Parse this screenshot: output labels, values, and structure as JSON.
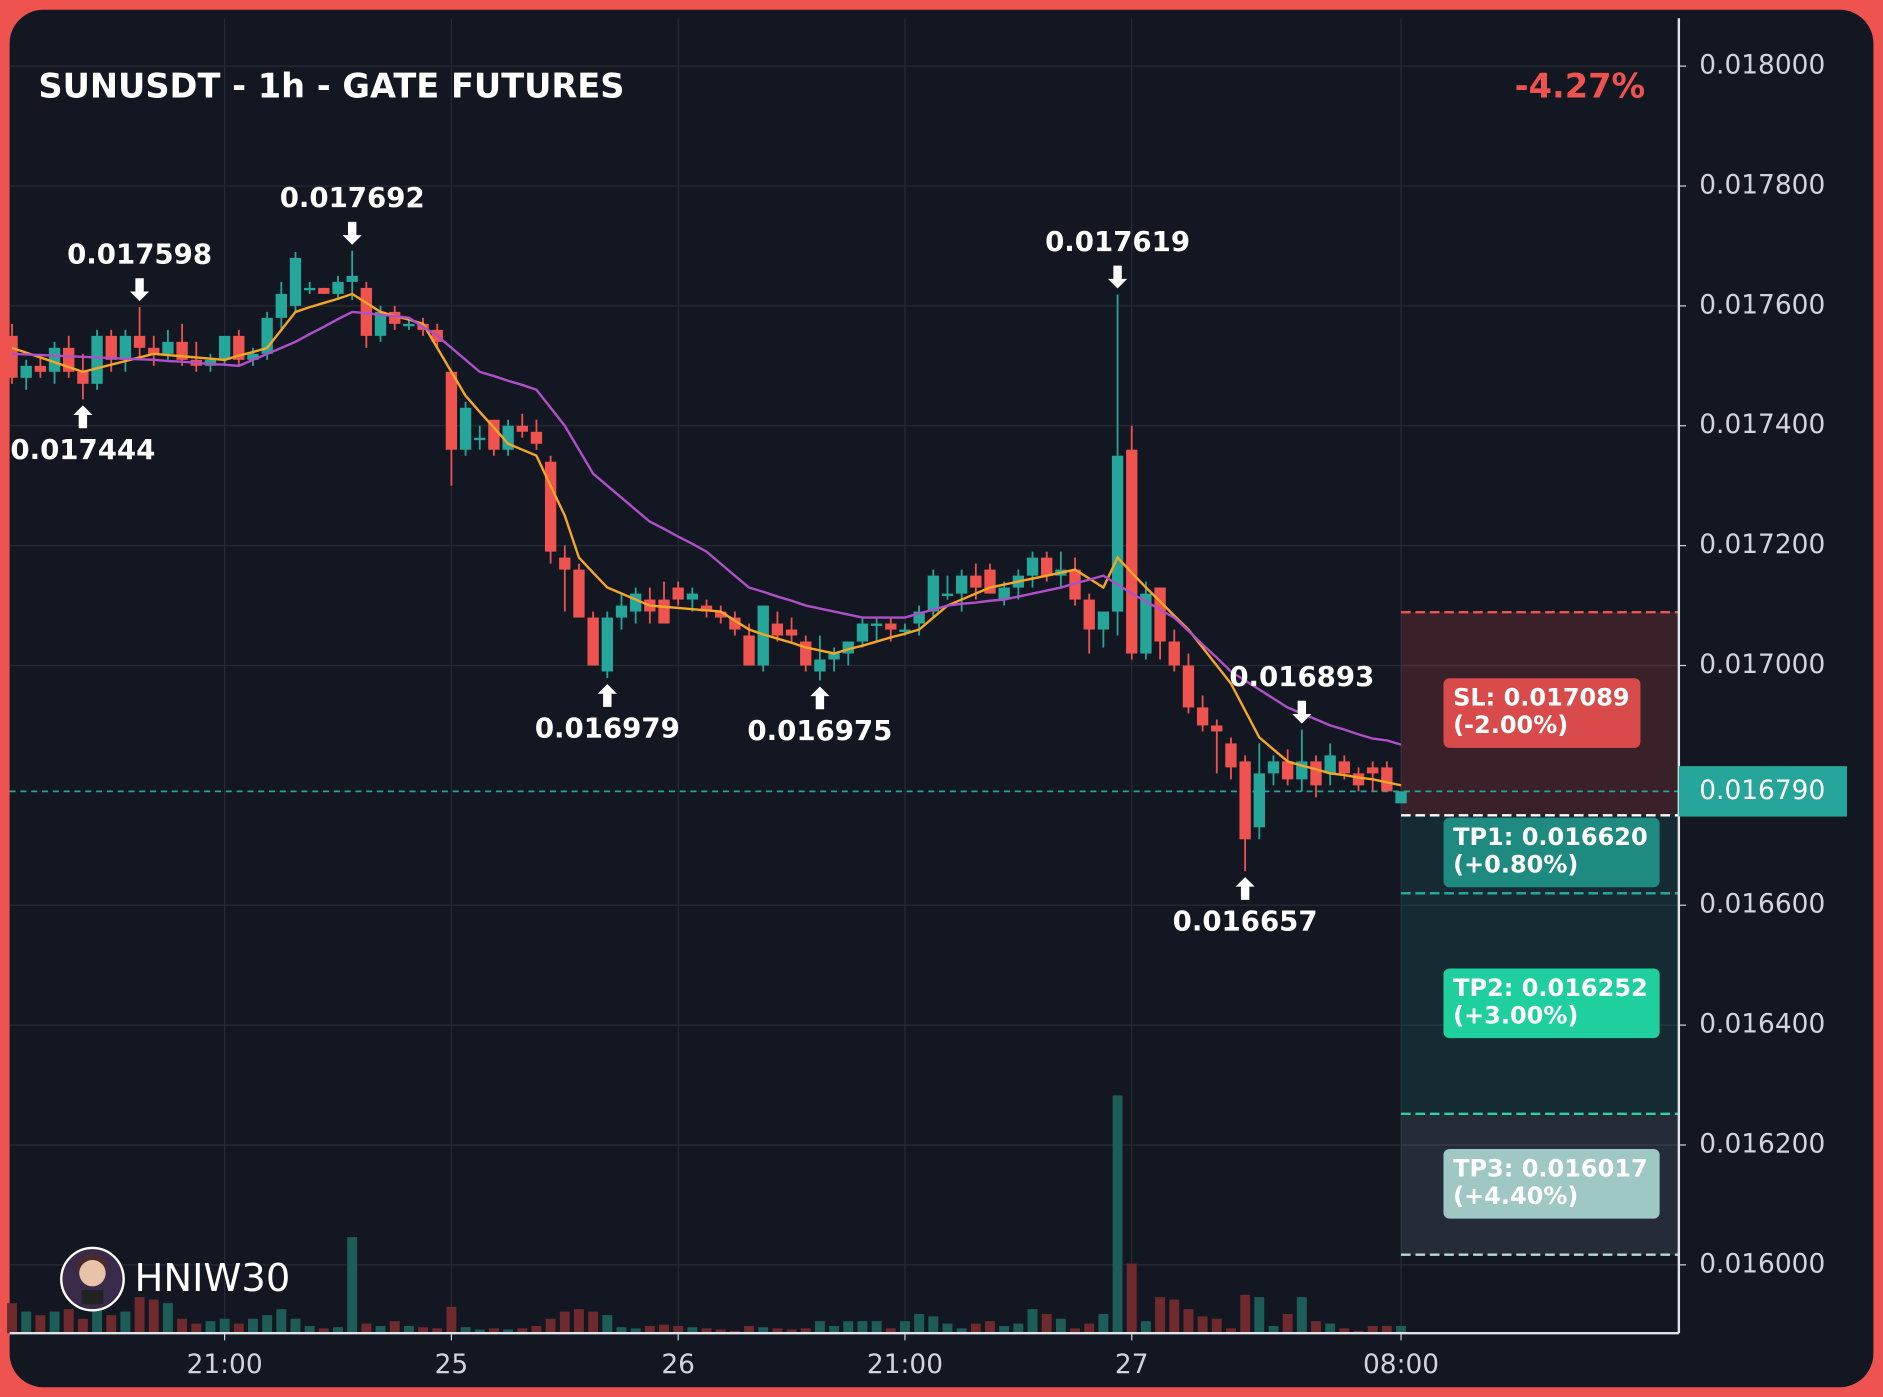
{
  "chart_data": {
    "type": "candlestick",
    "title": "SUNUSDT - 1h - GATE FUTURES",
    "change": "-4.27%",
    "watermark": "HNIW30",
    "up_color": "#26a69a",
    "down_color": "#ef5350",
    "xlim": [
      -0.17,
      117.6
    ],
    "xticks": [
      {
        "value": 15,
        "label": "21:00"
      },
      {
        "value": 31,
        "label": "25"
      },
      {
        "value": 47,
        "label": "26"
      },
      {
        "value": 63,
        "label": "21:00"
      },
      {
        "value": 79,
        "label": "27"
      },
      {
        "value": 98,
        "label": "08:00"
      }
    ],
    "ylim": [
      0.015886,
      0.01808
    ],
    "yticks": [
      {
        "value": 0.016,
        "label": "0.016000"
      },
      {
        "value": 0.0162,
        "label": "0.016200"
      },
      {
        "value": 0.0164,
        "label": "0.016400"
      },
      {
        "value": 0.0166,
        "label": "0.016600"
      },
      {
        "value": 0.017,
        "label": "0.017000"
      },
      {
        "value": 0.0172,
        "label": "0.017200"
      },
      {
        "value": 0.0174,
        "label": "0.017400"
      },
      {
        "value": 0.0176,
        "label": "0.017600"
      },
      {
        "value": 0.0178,
        "label": "0.017800"
      },
      {
        "value": 0.018,
        "label": "0.018000"
      }
    ],
    "grid": true,
    "open": [
      0.01755,
      0.01748,
      0.0175,
      0.01749,
      0.01753,
      0.01749,
      0.01747,
      0.01755,
      0.01751,
      0.01755,
      0.01753,
      0.01752,
      0.01754,
      0.01751,
      0.0175,
      0.01751,
      0.01755,
      0.01751,
      0.01752,
      0.01758,
      0.0176,
      0.01763,
      0.01763,
      0.01762,
      0.01764,
      0.01763,
      0.01755,
      0.01759,
      0.01757,
      0.01757,
      0.01756,
      0.01749,
      0.01736,
      0.01738,
      0.01741,
      0.01736,
      0.0174,
      0.01739,
      0.01734,
      0.01718,
      0.01716,
      0.01708,
      0.01699,
      0.01708,
      0.01709,
      0.01711,
      0.01711,
      0.01713,
      0.01711,
      0.0171,
      0.01709,
      0.01708,
      0.01705,
      0.017,
      0.01707,
      0.01706,
      0.01704,
      0.01699,
      0.01701,
      0.01702,
      0.01704,
      0.01707,
      0.01707,
      0.01706,
      0.01707,
      0.01709,
      0.01712,
      0.01712,
      0.01715,
      0.01716,
      0.01711,
      0.01713,
      0.01715,
      0.01718,
      0.01715,
      0.01716,
      0.01711,
      0.01706,
      0.01709,
      0.01736,
      0.01702,
      0.01713,
      0.01704,
      0.017,
      0.01693,
      0.0169,
      0.01687,
      0.01684,
      0.01673,
      0.01682,
      0.01684,
      0.01681,
      0.01684,
      0.01682,
      0.01684,
      0.01682,
      0.01683,
      0.01683,
      0.01677
    ],
    "high": [
      0.01757,
      0.01751,
      0.01752,
      0.01754,
      0.01755,
      0.01752,
      0.01756,
      0.01756,
      0.01756,
      0.017598,
      0.01755,
      0.01756,
      0.01757,
      0.01754,
      0.01752,
      0.01755,
      0.01756,
      0.01753,
      0.01759,
      0.01764,
      0.01769,
      0.01764,
      0.01763,
      0.01765,
      0.017692,
      0.01764,
      0.0176,
      0.0176,
      0.01758,
      0.01758,
      0.01757,
      0.01749,
      0.01744,
      0.0174,
      0.01741,
      0.01741,
      0.01742,
      0.01741,
      0.01735,
      0.0172,
      0.01717,
      0.01709,
      0.01709,
      0.01712,
      0.01713,
      0.01713,
      0.01714,
      0.01714,
      0.01713,
      0.01711,
      0.0171,
      0.01709,
      0.01707,
      0.0171,
      0.01709,
      0.01708,
      0.01705,
      0.01705,
      0.01703,
      0.01704,
      0.01708,
      0.01708,
      0.01708,
      0.01707,
      0.0171,
      0.01716,
      0.01715,
      0.01716,
      0.01717,
      0.01717,
      0.01714,
      0.01716,
      0.01719,
      0.01719,
      0.01719,
      0.01718,
      0.01712,
      0.01709,
      0.017619,
      0.0174,
      0.01714,
      0.01713,
      0.01706,
      0.01702,
      0.01695,
      0.01691,
      0.01688,
      0.01685,
      0.01687,
      0.01685,
      0.01686,
      0.016893,
      0.01685,
      0.01687,
      0.01685,
      0.01683,
      0.01684,
      0.01684,
      0.01679
    ],
    "low": [
      0.01747,
      0.01746,
      0.01748,
      0.01747,
      0.01748,
      0.017444,
      0.01746,
      0.01749,
      0.01749,
      0.01751,
      0.0175,
      0.01751,
      0.0175,
      0.01749,
      0.01749,
      0.0175,
      0.0175,
      0.0175,
      0.01751,
      0.01756,
      0.01759,
      0.01762,
      0.01762,
      0.01761,
      0.01761,
      0.01753,
      0.01754,
      0.01756,
      0.01756,
      0.01755,
      0.01753,
      0.0173,
      0.01735,
      0.01736,
      0.01735,
      0.01735,
      0.01738,
      0.01736,
      0.01717,
      0.01709,
      0.01708,
      0.017,
      0.016979,
      0.01706,
      0.01707,
      0.01707,
      0.01707,
      0.0171,
      0.01709,
      0.01708,
      0.01707,
      0.01705,
      0.017,
      0.01699,
      0.01704,
      0.01704,
      0.01699,
      0.016975,
      0.01699,
      0.017,
      0.01703,
      0.01704,
      0.01704,
      0.01705,
      0.01705,
      0.01708,
      0.01711,
      0.01709,
      0.01711,
      0.01712,
      0.0171,
      0.01711,
      0.01713,
      0.01714,
      0.01713,
      0.0171,
      0.01702,
      0.01703,
      0.01705,
      0.01701,
      0.01701,
      0.01701,
      0.01699,
      0.01692,
      0.01689,
      0.01682,
      0.01681,
      0.016657,
      0.01671,
      0.0168,
      0.0168,
      0.01679,
      0.01678,
      0.0168,
      0.01681,
      0.01679,
      0.01679,
      0.01679,
      0.01677
    ],
    "close": [
      0.01748,
      0.0175,
      0.01749,
      0.01753,
      0.01749,
      0.01747,
      0.01755,
      0.01751,
      0.01755,
      0.01753,
      0.01752,
      0.01754,
      0.01751,
      0.0175,
      0.01751,
      0.01755,
      0.01751,
      0.01752,
      0.01758,
      0.01762,
      0.01768,
      0.01763,
      0.01762,
      0.01764,
      0.01765,
      0.01755,
      0.01759,
      0.01757,
      0.01757,
      0.01756,
      0.01754,
      0.01736,
      0.01743,
      0.01738,
      0.01736,
      0.0174,
      0.01739,
      0.01737,
      0.01719,
      0.01716,
      0.01708,
      0.017,
      0.01708,
      0.0171,
      0.01712,
      0.01709,
      0.01707,
      0.01711,
      0.01712,
      0.01709,
      0.01708,
      0.01706,
      0.017,
      0.0171,
      0.01705,
      0.01705,
      0.017,
      0.01701,
      0.01702,
      0.01704,
      0.01707,
      0.01707,
      0.01706,
      0.01706,
      0.01709,
      0.01715,
      0.01712,
      0.01715,
      0.01713,
      0.01712,
      0.01713,
      0.01715,
      0.01718,
      0.01715,
      0.01716,
      0.01711,
      0.01706,
      0.01709,
      0.01735,
      0.01702,
      0.01712,
      0.01704,
      0.017,
      0.01693,
      0.0169,
      0.01689,
      0.01683,
      0.01671,
      0.01682,
      0.01684,
      0.01681,
      0.01684,
      0.0168,
      0.01685,
      0.01682,
      0.0168,
      0.01682,
      0.01679,
      0.01679
    ],
    "volume_ylim": [
      0,
      200
    ],
    "volume": [
      25,
      18,
      15,
      18,
      20,
      12,
      22,
      15,
      18,
      30,
      28,
      25,
      12,
      8,
      10,
      12,
      8,
      12,
      15,
      20,
      12,
      6,
      4,
      5,
      80,
      8,
      6,
      10,
      6,
      5,
      4,
      22,
      5,
      3,
      4,
      3,
      4,
      6,
      12,
      18,
      20,
      18,
      15,
      5,
      4,
      6,
      7,
      6,
      5,
      4,
      3,
      2,
      6,
      5,
      4,
      3,
      4,
      10,
      6,
      10,
      10,
      10,
      4,
      10,
      16,
      14,
      8,
      4,
      8,
      10,
      6,
      8,
      20,
      16,
      12,
      4,
      8,
      16,
      198,
      58,
      10,
      30,
      28,
      20,
      14,
      12,
      4,
      32,
      30,
      6,
      16,
      30,
      10,
      8,
      4,
      2,
      6,
      6,
      6
    ],
    "series": [
      {
        "color": "#f5a623",
        "values": [
          0.01753,
          0.017522,
          0.017514,
          0.017506,
          0.017498,
          0.01749,
          0.017496,
          0.017502,
          0.017508,
          0.017514,
          0.01752,
          0.017518,
          0.017516,
          0.017514,
          0.017512,
          0.01751,
          0.017517,
          0.017523,
          0.01753,
          0.01756,
          0.01759,
          0.017598,
          0.017605,
          0.017612,
          0.01762,
          0.017605,
          0.01759,
          0.017583,
          0.017577,
          0.01757,
          0.01753,
          0.01749,
          0.01745,
          0.017423,
          0.017397,
          0.01737,
          0.01736,
          0.01735,
          0.0173,
          0.01725,
          0.01718,
          0.017155,
          0.01713,
          0.01712,
          0.01711,
          0.0171,
          0.017098,
          0.017096,
          0.017094,
          0.017092,
          0.01709,
          0.017075,
          0.01706,
          0.017052,
          0.017045,
          0.017038,
          0.01703,
          0.017025,
          0.01702,
          0.017027,
          0.017033,
          0.01704,
          0.017047,
          0.017053,
          0.01706,
          0.01708,
          0.0171,
          0.01711,
          0.01712,
          0.01713,
          0.017135,
          0.01714,
          0.017145,
          0.01715,
          0.017155,
          0.01716,
          0.017145,
          0.01713,
          0.01718,
          0.017155,
          0.01713,
          0.017107,
          0.017083,
          0.01706,
          0.01703,
          0.017,
          0.01697,
          0.016925,
          0.01688,
          0.01686,
          0.01684,
          0.016833,
          0.016827,
          0.01682,
          0.016817,
          0.016813,
          0.01681,
          0.016805,
          0.0168
        ]
      },
      {
        "color": "#b04fc9",
        "values": [
          0.01752,
          0.017519,
          0.017518,
          0.017517,
          0.017516,
          0.017515,
          0.017514,
          0.017513,
          0.017512,
          0.017511,
          0.01751,
          0.017508,
          0.017507,
          0.017505,
          0.017503,
          0.017502,
          0.0175,
          0.01751,
          0.01752,
          0.01753,
          0.01754,
          0.017553,
          0.017565,
          0.017578,
          0.01759,
          0.017588,
          0.017585,
          0.017583,
          0.01758,
          0.017565,
          0.01755,
          0.01753,
          0.01751,
          0.01749,
          0.017483,
          0.017475,
          0.017468,
          0.01746,
          0.01743,
          0.0174,
          0.01736,
          0.01732,
          0.0173,
          0.01728,
          0.01726,
          0.01724,
          0.017228,
          0.017215,
          0.017203,
          0.01719,
          0.01717,
          0.01715,
          0.01713,
          0.017123,
          0.017115,
          0.017108,
          0.0171,
          0.017095,
          0.01709,
          0.017085,
          0.01708,
          0.01708,
          0.01708,
          0.01708,
          0.017087,
          0.017093,
          0.0171,
          0.017103,
          0.017105,
          0.017108,
          0.01711,
          0.017115,
          0.01712,
          0.017125,
          0.01713,
          0.017137,
          0.017143,
          0.01715,
          0.017135,
          0.01712,
          0.017107,
          0.017093,
          0.01708,
          0.017058,
          0.017035,
          0.017013,
          0.01699,
          0.016975,
          0.01696,
          0.016945,
          0.01693,
          0.01692,
          0.01691,
          0.0169,
          0.016893,
          0.016885,
          0.016878,
          0.016875,
          0.016868
        ]
      }
    ],
    "annotations": [
      {
        "x": 9,
        "value": 0.017598,
        "position": "above"
      },
      {
        "x": 24,
        "value": 0.017692,
        "position": "above"
      },
      {
        "x": 5,
        "value": 0.017444,
        "position": "below"
      },
      {
        "x": 42,
        "value": 0.016979,
        "position": "below"
      },
      {
        "x": 57,
        "value": 0.016975,
        "position": "below"
      },
      {
        "x": 78,
        "value": 0.017619,
        "position": "above"
      },
      {
        "x": 91,
        "value": 0.016893,
        "position": "above"
      },
      {
        "x": 87,
        "value": 0.016657,
        "position": "below"
      }
    ],
    "current_price": {
      "value": 0.01679,
      "label": "0.016790",
      "color": "#26a69a"
    },
    "trade": {
      "start": 98,
      "entry": 0.01675,
      "levels": [
        {
          "value": 0.017089,
          "label": "SL: 0.017089",
          "change": "(-2.00%)",
          "color": "#d94a4a",
          "line": "#ef5350"
        },
        {
          "value": 0.01662,
          "label": "TP1: 0.016620",
          "change": "(+0.80%)",
          "color": "#1f8a80",
          "line": "#26a69a"
        },
        {
          "value": 0.016252,
          "label": "TP2: 0.016252",
          "change": "(+3.00%)",
          "color": "#1fcf9e",
          "line": "#2ad3a0"
        },
        {
          "value": 0.016017,
          "label": "TP3: 0.016017",
          "change": "(+4.40%)",
          "color": "#9fc7c3",
          "line": "#b8d8d4"
        }
      ]
    }
  }
}
